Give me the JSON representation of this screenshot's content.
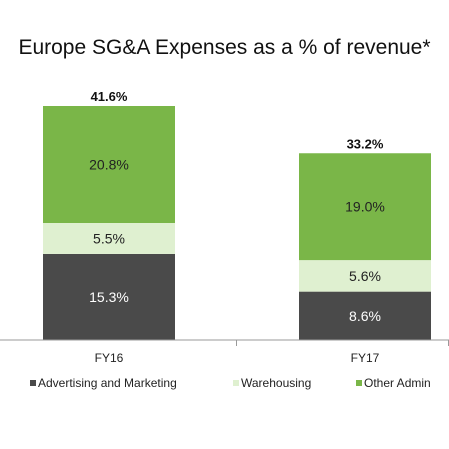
{
  "chart_data": {
    "type": "bar",
    "stacked": true,
    "title": "Europe SG&A Expenses as a % of revenue*",
    "xlabel": "",
    "ylabel": "",
    "ylim": [
      0,
      41.6
    ],
    "grid": false,
    "legend_position": "bottom",
    "categories": [
      "FY16",
      "FY17"
    ],
    "totals": [
      41.6,
      33.2
    ],
    "total_labels": [
      "41.6%",
      "33.2%"
    ],
    "series": [
      {
        "name": "Advertising and Marketing",
        "values": [
          15.3,
          8.6
        ],
        "labels": [
          "15.3%",
          "8.6%"
        ],
        "color": "#4a4a4a",
        "label_color": "#ffffff"
      },
      {
        "name": "Warehousing",
        "values": [
          5.5,
          5.6
        ],
        "labels": [
          "5.5%",
          "5.6%"
        ],
        "color": "#dff0d0",
        "label_color": "#222222"
      },
      {
        "name": "Other Admin",
        "values": [
          20.8,
          19.0
        ],
        "labels": [
          "20.8%",
          "19.0%"
        ],
        "color": "#7ab648",
        "label_color": "#222222"
      }
    ],
    "axis_color": "#9a9a9a"
  }
}
